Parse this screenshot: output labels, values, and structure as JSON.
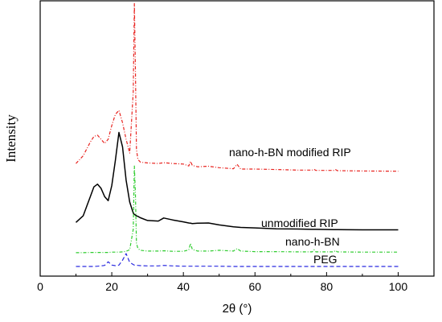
{
  "chart_data": {
    "type": "line",
    "title": "",
    "xlabel": "2θ (°)",
    "ylabel": "Intensity",
    "xlim": [
      0,
      110
    ],
    "ylim": [
      0,
      1
    ],
    "xticks": [
      "0",
      "20",
      "40",
      "60",
      "80",
      "100"
    ],
    "x": [
      10,
      12,
      14,
      15,
      16,
      17,
      18,
      19,
      20,
      21,
      22,
      23,
      24,
      25,
      26,
      26.3,
      26.6,
      26.9,
      27.3,
      28,
      30,
      33,
      34.5,
      37,
      40,
      41.5,
      42,
      42.5,
      44,
      47,
      50,
      54,
      55,
      56,
      60,
      66,
      72,
      76,
      76.5,
      77,
      82,
      82.5,
      83,
      90,
      100
    ],
    "series": [
      {
        "name": "nano-h-BN modified RIP",
        "color": "#e8231f",
        "style": "dashdot",
        "values": [
          0.409,
          0.437,
          0.487,
          0.507,
          0.512,
          0.497,
          0.482,
          0.497,
          0.547,
          0.587,
          0.602,
          0.557,
          0.497,
          0.447,
          0.67,
          0.99,
          0.75,
          0.46,
          0.424,
          0.414,
          0.411,
          0.409,
          0.412,
          0.409,
          0.407,
          0.4,
          0.417,
          0.402,
          0.397,
          0.399,
          0.394,
          0.39,
          0.406,
          0.389,
          0.389,
          0.387,
          0.385,
          0.385,
          0.388,
          0.384,
          0.384,
          0.387,
          0.383,
          0.382,
          0.381
        ]
      },
      {
        "name": "unmodified RIP",
        "color": "#000000",
        "style": "solid",
        "values": [
          0.195,
          0.219,
          0.289,
          0.324,
          0.334,
          0.319,
          0.289,
          0.274,
          0.329,
          0.419,
          0.522,
          0.469,
          0.349,
          0.269,
          0.229,
          0.224,
          0.222,
          0.219,
          0.217,
          0.212,
          0.202,
          0.2,
          0.211,
          0.204,
          0.197,
          0.193,
          0.192,
          0.191,
          0.192,
          0.193,
          0.186,
          0.179,
          0.178,
          0.177,
          0.175,
          0.172,
          0.171,
          0.17,
          0.17,
          0.17,
          0.169,
          0.169,
          0.169,
          0.168,
          0.168
        ]
      },
      {
        "name": "nano-h-BN",
        "color": "#2ecc2e",
        "style": "dashdot",
        "values": [
          0.085,
          0.085,
          0.086,
          0.086,
          0.086,
          0.086,
          0.086,
          0.086,
          0.087,
          0.087,
          0.087,
          0.088,
          0.09,
          0.096,
          0.17,
          0.4,
          0.3,
          0.12,
          0.1,
          0.094,
          0.091,
          0.091,
          0.092,
          0.09,
          0.09,
          0.095,
          0.119,
          0.097,
          0.091,
          0.091,
          0.094,
          0.091,
          0.1,
          0.091,
          0.089,
          0.089,
          0.088,
          0.088,
          0.096,
          0.088,
          0.088,
          0.093,
          0.088,
          0.087,
          0.087
        ]
      },
      {
        "name": "PEG",
        "color": "#2a2ae0",
        "style": "dashed",
        "values": [
          0.035,
          0.035,
          0.035,
          0.035,
          0.036,
          0.037,
          0.039,
          0.052,
          0.04,
          0.038,
          0.04,
          0.058,
          0.082,
          0.05,
          0.042,
          0.04,
          0.04,
          0.04,
          0.039,
          0.038,
          0.037,
          0.037,
          0.039,
          0.037,
          0.036,
          0.036,
          0.036,
          0.036,
          0.036,
          0.036,
          0.036,
          0.035,
          0.035,
          0.035,
          0.035,
          0.035,
          0.035,
          0.035,
          0.035,
          0.035,
          0.035,
          0.035,
          0.035,
          0.035,
          0.035
        ]
      }
    ],
    "series_labels": [
      {
        "text": "nano-h-BN modified RIP",
        "series": 0
      },
      {
        "text": "unmodified RIP",
        "series": 1
      },
      {
        "text": "nano-h-BN",
        "series": 2
      },
      {
        "text": "PEG",
        "series": 3
      }
    ],
    "grid": false,
    "legend": "inline labels"
  }
}
